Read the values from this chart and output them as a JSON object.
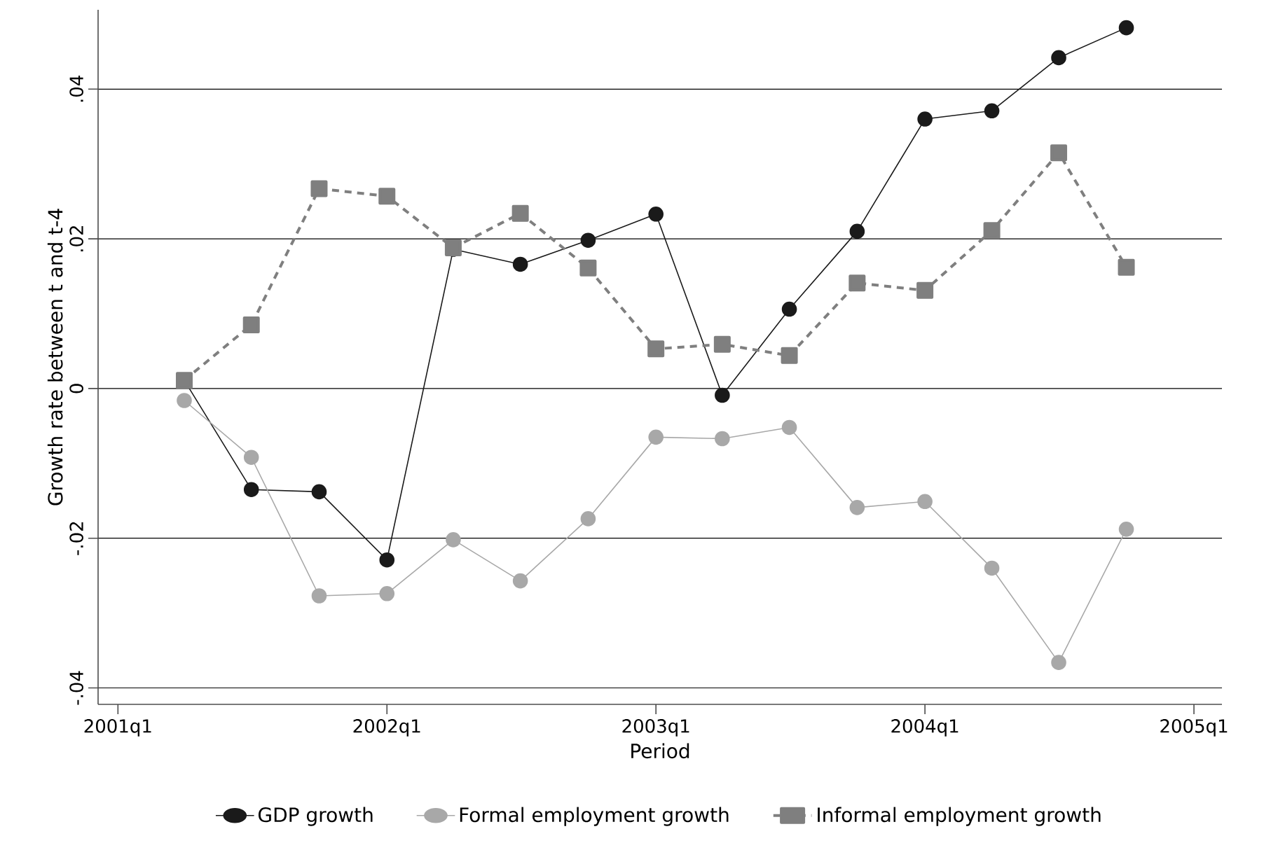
{
  "chart_data": {
    "type": "line",
    "xlabel": "Period",
    "ylabel": "Growth rate between t and t-4",
    "x": [
      "2001-04",
      "2001-07",
      "2001-10",
      "2002-01",
      "2002-04",
      "2002-07",
      "2002-10",
      "2003-01",
      "2003-04",
      "2003-07",
      "2003-10",
      "2004-01",
      "2004-04",
      "2004-07",
      "2004-10"
    ],
    "xlim": [
      "2000-12-05",
      "2005-02-08"
    ],
    "xticks": [
      {
        "value": "2001-01",
        "label": "2001q1"
      },
      {
        "value": "2002-01",
        "label": "2002q1"
      },
      {
        "value": "2003-01",
        "label": "2003q1"
      },
      {
        "value": "2004-01",
        "label": "2004q1"
      },
      {
        "value": "2005-01",
        "label": "2005q1"
      }
    ],
    "ylim": [
      -0.0422,
      0.0506
    ],
    "yticks": [
      {
        "value": -0.04,
        "label": "-.04"
      },
      {
        "value": -0.02,
        "label": "-.02"
      },
      0,
      {
        "value": 0.02,
        "label": ".02"
      },
      {
        "value": 0.04,
        "label": ".04"
      }
    ],
    "grid": "y",
    "legend": "bottom",
    "series": [
      {
        "name": "GDP growth",
        "color": "#1a1a1a",
        "marker": "circle",
        "line_style": "solid",
        "values": [
          0.0011,
          -0.0135,
          -0.0138,
          -0.0229,
          0.0186,
          0.0166,
          0.0198,
          0.0233,
          -0.0009,
          0.0106,
          0.021,
          0.036,
          0.0371,
          0.0442,
          0.0482
        ]
      },
      {
        "name": "Formal employment growth",
        "color": "#a8a8a8",
        "marker": "circle",
        "line_style": "solid",
        "values": [
          -0.0016,
          -0.0092,
          -0.0277,
          -0.0274,
          -0.0202,
          -0.0257,
          -0.0174,
          -0.0065,
          -0.0067,
          -0.0052,
          -0.0159,
          -0.0151,
          -0.024,
          -0.0366,
          -0.0188
        ]
      },
      {
        "name": "Informal employment growth",
        "color": "#7f7f7f",
        "marker": "square",
        "line_style": "dashed",
        "values": [
          0.0011,
          0.0085,
          0.0267,
          0.0257,
          0.0188,
          0.0234,
          0.0161,
          0.0053,
          0.0059,
          0.0044,
          0.0141,
          0.0131,
          0.0211,
          0.0315,
          0.0162
        ]
      }
    ]
  }
}
